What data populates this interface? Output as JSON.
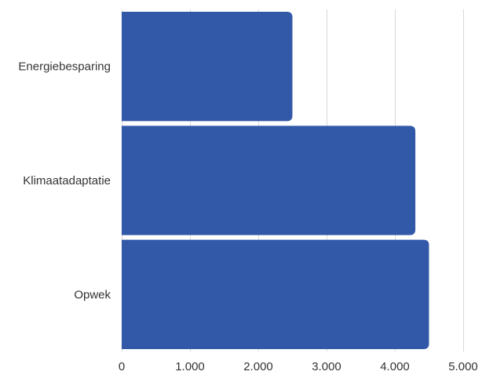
{
  "chart_data": {
    "type": "bar",
    "orientation": "horizontal",
    "categories": [
      "Energiebesparing",
      "Klimaatadaptatie",
      "Opwek"
    ],
    "values": [
      2500,
      4300,
      4500
    ],
    "xlim": [
      0,
      5000
    ],
    "x_ticks": [
      0,
      1000,
      2000,
      3000,
      4000,
      5000
    ],
    "x_tick_labels": [
      "0",
      "1.000",
      "2.000",
      "3.000",
      "4.000",
      "5.000"
    ],
    "grid": "vertical",
    "bar_color": "#3258a8",
    "title": "",
    "xlabel": "",
    "ylabel": ""
  }
}
